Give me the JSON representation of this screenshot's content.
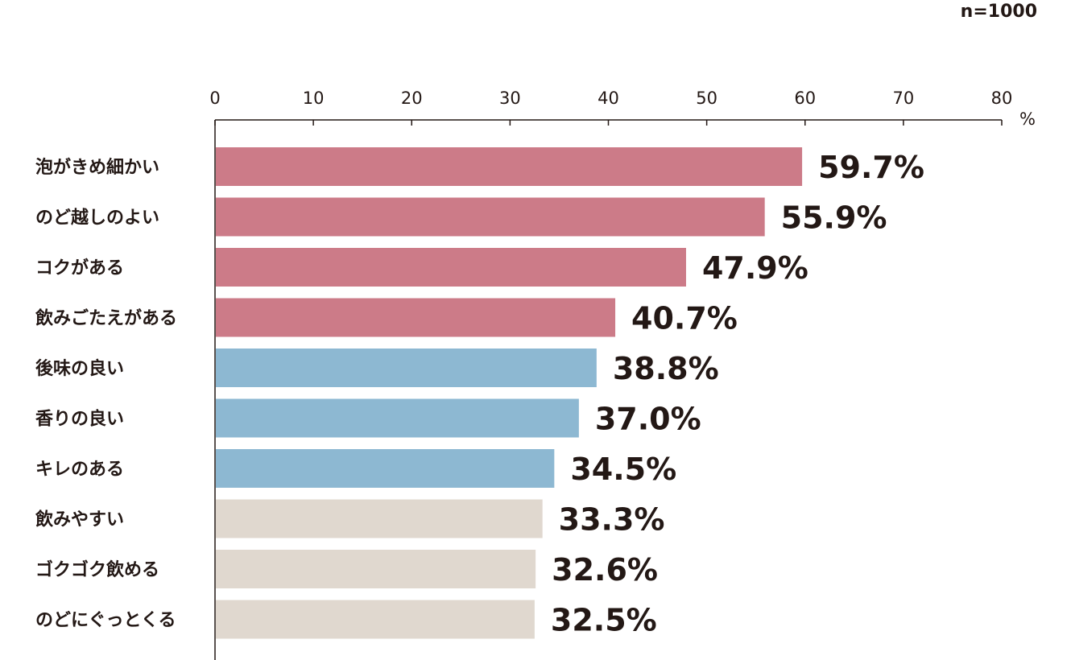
{
  "sample_note": "n=1000",
  "colors": {
    "group_1": "#cc7b88",
    "group_2": "#8db8d2",
    "group_3": "#e0d8cf",
    "axis": "#231815",
    "text": "#231815"
  },
  "chart_data": {
    "type": "bar",
    "orientation": "horizontal",
    "unit_label": "%",
    "xlim": [
      0,
      80
    ],
    "x_ticks": [
      "0",
      "10",
      "20",
      "30",
      "40",
      "50",
      "60",
      "70",
      "80"
    ],
    "grid": false,
    "categories": [
      "泡がきめ細かい",
      "のど越しのよい",
      "コクがある",
      "飲みごたえがある",
      "後味の良い",
      "香りの良い",
      "キレのある",
      "飲みやすい",
      "ゴクゴク飲める",
      "のどにぐっとくる"
    ],
    "values": [
      59.7,
      55.9,
      47.9,
      40.7,
      38.8,
      37.0,
      34.5,
      33.3,
      32.6,
      32.5
    ],
    "value_labels": [
      "59.7%",
      "55.9%",
      "47.9%",
      "40.7%",
      "38.8%",
      "37.0%",
      "34.5%",
      "33.3%",
      "32.6%",
      "32.5%"
    ],
    "color_groups": [
      "group_1",
      "group_1",
      "group_1",
      "group_1",
      "group_2",
      "group_2",
      "group_2",
      "group_3",
      "group_3",
      "group_3"
    ]
  }
}
